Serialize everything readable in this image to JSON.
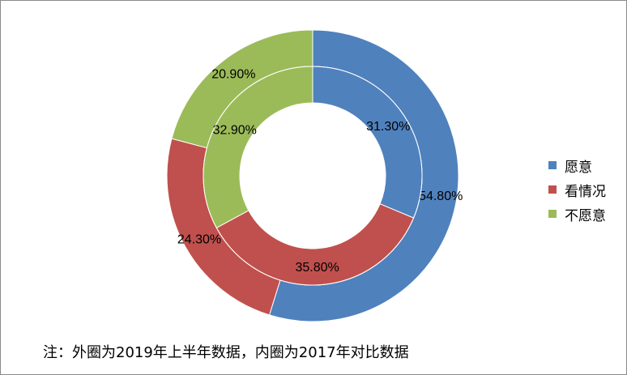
{
  "chart_data": {
    "type": "doughnut",
    "categories": [
      "愿意",
      "看情况",
      "不愿意"
    ],
    "colors": [
      "#4F81BD",
      "#C0504D",
      "#9BBB59"
    ],
    "series": [
      {
        "ring": "outer",
        "values": [
          54.8,
          24.3,
          20.9
        ],
        "labels": [
          "54.80%",
          "24.30%",
          "20.90%"
        ]
      },
      {
        "ring": "inner",
        "values": [
          31.3,
          35.8,
          32.9
        ],
        "labels": [
          "31.30%",
          "35.80%",
          "32.90%"
        ]
      }
    ],
    "legend": {
      "position": "right",
      "entries": [
        "愿意",
        "看情况",
        "不愿意"
      ]
    },
    "note": "注：外圈为2019年上半年数据，内圈为2017年对比数据"
  }
}
